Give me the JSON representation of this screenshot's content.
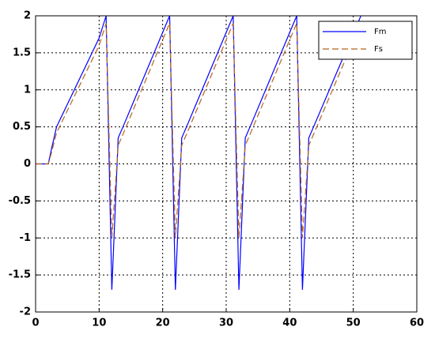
{
  "chart_data": {
    "type": "line",
    "x": [
      0,
      2,
      2.5,
      3.3,
      10,
      11.1,
      12,
      13,
      14,
      21.1,
      22,
      23,
      24,
      31.1,
      32,
      33,
      34,
      41.1,
      42,
      43,
      44,
      51.2
    ],
    "series": [
      {
        "name": "Fm",
        "color": "#0000ff",
        "dash": false,
        "values": [
          0,
          0,
          0.2,
          0.5,
          1.7,
          2,
          -1.7,
          0.35,
          0.55,
          2,
          -1.7,
          0.35,
          0.55,
          2,
          -1.7,
          0.35,
          0.55,
          2,
          -1.7,
          0.35,
          0.55,
          2
        ]
      },
      {
        "name": "Fs",
        "color": "#b5651d",
        "dash": true,
        "values": [
          0,
          0,
          0.15,
          0.42,
          1.6,
          1.9,
          -1.0,
          0.25,
          0.45,
          1.9,
          -1.0,
          0.25,
          0.45,
          1.9,
          -1.0,
          0.25,
          0.45,
          1.9,
          -1.0,
          0.25,
          0.45,
          1.9
        ]
      }
    ],
    "xlim": [
      0,
      60
    ],
    "xticks": [
      0,
      10,
      20,
      30,
      40,
      50,
      60
    ],
    "ylim": [
      -2,
      2
    ],
    "yticks": [
      -2,
      -1.5,
      -1,
      -0.5,
      0,
      0.5,
      1,
      1.5,
      2
    ],
    "grid": true,
    "legend": "upper right"
  }
}
